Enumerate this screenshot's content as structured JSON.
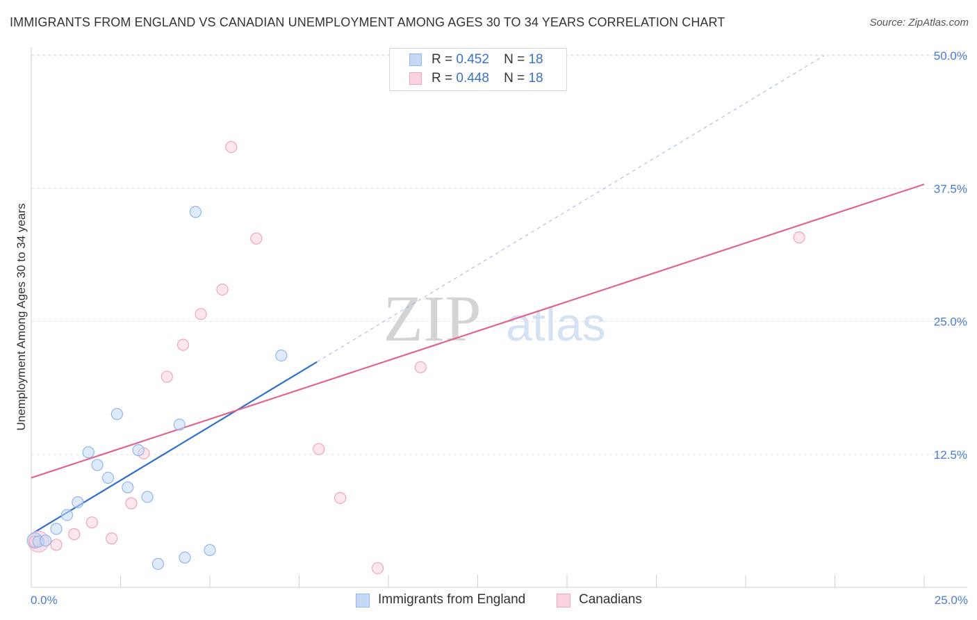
{
  "title": "IMMIGRANTS FROM ENGLAND VS CANADIAN UNEMPLOYMENT AMONG AGES 30 TO 34 YEARS CORRELATION CHART",
  "source": "Source: ZipAtlas.com",
  "watermark": {
    "zip": "ZIP",
    "atlas": "atlas"
  },
  "legend": {
    "rows": [
      {
        "r_label": "R =",
        "r_value": "0.452",
        "n_label": "N =",
        "n_value": "18"
      },
      {
        "r_label": "R =",
        "r_value": "0.448",
        "n_label": "N =",
        "n_value": "18"
      }
    ]
  },
  "bottom_legend": [
    "Immigrants from England",
    "Canadians"
  ],
  "chart_data": {
    "type": "scatter",
    "title": "IMMIGRANTS FROM ENGLAND VS CANADIAN UNEMPLOYMENT AMONG AGES 30 TO 34 YEARS CORRELATION CHART",
    "xlabel": "",
    "ylabel": "Unemployment Among Ages 30 to 34 years",
    "xlim": [
      0,
      25
    ],
    "ylim": [
      0,
      50
    ],
    "x_tick_labels": [
      "0.0%",
      "25.0%"
    ],
    "y_ticks": [
      12.5,
      25.0,
      37.5,
      50.0
    ],
    "y_tick_labels": [
      "12.5%",
      "25.0%",
      "37.5%",
      "50.0%"
    ],
    "grid": "horizontal dashed",
    "legend_position": "top-center",
    "colors": {
      "england": "#8fb6ee",
      "england_fill": "#c5d9f5",
      "england_line": "#2f6fcc",
      "canadians": "#f0a4bc",
      "canadians_fill": "#f9d3df",
      "canadians_line": "#e0648e",
      "tick_text": "#4a7bd0"
    },
    "series": [
      {
        "name": "Immigrants from England",
        "points": [
          [
            0.2,
            4.3
          ],
          [
            0.4,
            4.4
          ],
          [
            0.7,
            5.5
          ],
          [
            1.0,
            6.8
          ],
          [
            1.3,
            8.0
          ],
          [
            1.6,
            12.7
          ],
          [
            1.85,
            11.5
          ],
          [
            2.15,
            10.3
          ],
          [
            2.4,
            16.3
          ],
          [
            2.7,
            9.4
          ],
          [
            3.0,
            12.9
          ],
          [
            3.25,
            8.5
          ],
          [
            3.55,
            2.2
          ],
          [
            4.15,
            15.3
          ],
          [
            4.3,
            2.8
          ],
          [
            4.6,
            35.3
          ],
          [
            5.0,
            3.5
          ],
          [
            7.0,
            21.8
          ]
        ],
        "trend": {
          "x": [
            0.0,
            8.0
          ],
          "y": [
            5.0,
            21.2
          ],
          "extended_to": [
            22.2,
            50.0
          ]
        }
      },
      {
        "name": "Canadians",
        "points": [
          [
            0.1,
            4.3
          ],
          [
            0.7,
            4.0
          ],
          [
            1.2,
            5.0
          ],
          [
            1.7,
            6.1
          ],
          [
            2.25,
            4.6
          ],
          [
            2.8,
            7.9
          ],
          [
            3.15,
            12.6
          ],
          [
            3.8,
            19.8
          ],
          [
            4.25,
            22.8
          ],
          [
            4.75,
            25.7
          ],
          [
            5.35,
            28.0
          ],
          [
            5.6,
            41.4
          ],
          [
            6.3,
            32.8
          ],
          [
            8.05,
            13.0
          ],
          [
            8.65,
            8.4
          ],
          [
            9.7,
            1.8
          ],
          [
            10.9,
            20.7
          ],
          [
            21.5,
            32.9
          ]
        ],
        "trend": {
          "x": [
            0.0,
            25.0
          ],
          "y": [
            10.3,
            37.9
          ]
        }
      }
    ]
  }
}
